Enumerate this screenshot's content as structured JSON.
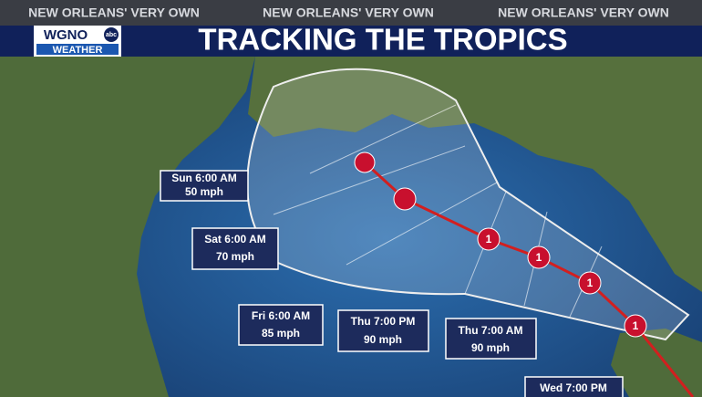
{
  "header": {
    "tagline": [
      "NEW ORLEANS' VERY OWN",
      "NEW ORLEANS' VERY OWN",
      "NEW ORLEANS' VERY OWN"
    ],
    "logo": {
      "station": "WGNO",
      "network": "abc",
      "sub": "WEATHER"
    },
    "title": "TRACKING THE TROPICS"
  },
  "storm_points": [
    {
      "category": "1"
    },
    {
      "category": "1"
    },
    {
      "category": "1"
    },
    {
      "category": "1"
    }
  ],
  "labels": [
    {
      "time": "Sun 6:00 AM",
      "wind": "50 mph"
    },
    {
      "time": "Sat 6:00 AM",
      "wind": "70 mph"
    },
    {
      "time": "Fri 6:00 AM",
      "wind": "85 mph"
    },
    {
      "time": "Thu 7:00 PM",
      "wind": "90 mph"
    },
    {
      "time": "Thu 7:00 AM",
      "wind": "90 mph"
    },
    {
      "time": "Wed 7:00 PM"
    }
  ]
}
